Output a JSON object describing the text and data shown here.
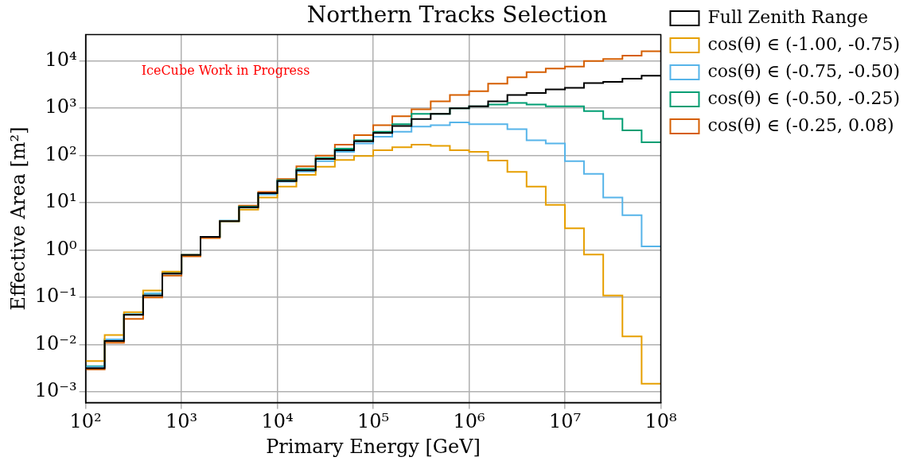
{
  "chart_data": {
    "type": "histogram",
    "title": "Northern Tracks Selection",
    "xlabel": "Primary Energy [GeV]",
    "ylabel": "Effective Area [m²]",
    "annotations": [
      "IceCube Work in Progress"
    ],
    "bins": [
      100,
      158,
      251,
      398,
      631,
      1000,
      1580,
      2510,
      3980,
      6310,
      10000,
      15800,
      25100,
      39800,
      63100,
      100000,
      158000,
      251000,
      398000,
      631000,
      1000000,
      1580000,
      2510000,
      3980000,
      6310000,
      10000000,
      15800000,
      25100000,
      39800000,
      63100000,
      100000000
    ],
    "series": [
      {
        "name": "Full Zenith Range",
        "color": "#000000",
        "values": [
          0.0032,
          0.012,
          0.043,
          0.11,
          0.32,
          0.79,
          1.9,
          4.1,
          8.1,
          16,
          29,
          49,
          85,
          130,
          200,
          300,
          420,
          590,
          760,
          1000,
          1100,
          1400,
          1900,
          2100,
          2500,
          2700,
          3400,
          3600,
          4200,
          4900
        ]
      },
      {
        "name": "cos(θ) ∈ (-1.00, -0.75)",
        "color": "#e69f00",
        "values": [
          0.0045,
          0.016,
          0.049,
          0.14,
          0.35,
          0.79,
          1.9,
          4.1,
          7.2,
          13,
          22,
          39,
          58,
          81,
          98,
          130,
          150,
          170,
          160,
          130,
          120,
          78,
          45,
          22,
          9.1,
          2.9,
          0.81,
          0.11,
          0.015,
          0.0015
        ]
      },
      {
        "name": "cos(θ) ∈ (-0.75, -0.50)",
        "color": "#56b4e9",
        "values": [
          0.0034,
          0.013,
          0.044,
          0.12,
          0.32,
          0.79,
          1.9,
          4.2,
          7.9,
          15,
          28,
          46,
          76,
          120,
          180,
          250,
          320,
          410,
          440,
          500,
          460,
          460,
          360,
          210,
          180,
          76,
          41,
          13,
          5.5,
          1.2
        ]
      },
      {
        "name": "cos(θ) ∈ (-0.50, -0.25)",
        "color": "#009e73",
        "values": [
          0.0035,
          0.013,
          0.044,
          0.12,
          0.33,
          0.79,
          1.9,
          4.1,
          8.3,
          16,
          30,
          52,
          89,
          140,
          210,
          320,
          460,
          760,
          760,
          1000,
          1100,
          1200,
          1300,
          1200,
          1100,
          1100,
          870,
          600,
          340,
          190
        ]
      },
      {
        "name": "cos(θ) ∈ (-0.25, 0.08)",
        "color": "#d55e00",
        "values": [
          0.003,
          0.011,
          0.035,
          0.1,
          0.29,
          0.74,
          1.8,
          4.1,
          8.7,
          17,
          32,
          59,
          100,
          170,
          270,
          440,
          680,
          950,
          1400,
          1900,
          2300,
          3300,
          4500,
          5800,
          6900,
          7600,
          10000,
          11000,
          13000,
          16000
        ]
      }
    ],
    "log": "xy",
    "xlim": [
      100,
      100000000
    ],
    "ylim": [
      0.00063,
      36000
    ],
    "xticks": [
      {
        "value": 100,
        "label": "10²"
      },
      {
        "value": 1000,
        "label": "10³"
      },
      {
        "value": 10000,
        "label": "10⁴"
      },
      {
        "value": 100000,
        "label": "10⁵"
      },
      {
        "value": 1000000,
        "label": "10⁶"
      },
      {
        "value": 10000000,
        "label": "10⁷"
      },
      {
        "value": 100000000,
        "label": "10⁸"
      }
    ],
    "yticks": [
      {
        "value": 0.001,
        "label": "10⁻³"
      },
      {
        "value": 0.01,
        "label": "10⁻²"
      },
      {
        "value": 0.1,
        "label": "10⁻¹"
      },
      {
        "value": 1,
        "label": "10⁰"
      },
      {
        "value": 10,
        "label": "10¹"
      },
      {
        "value": 100,
        "label": "10²"
      },
      {
        "value": 1000,
        "label": "10³"
      },
      {
        "value": 10000,
        "label": "10⁴"
      }
    ],
    "grid": true,
    "legend": "right"
  }
}
